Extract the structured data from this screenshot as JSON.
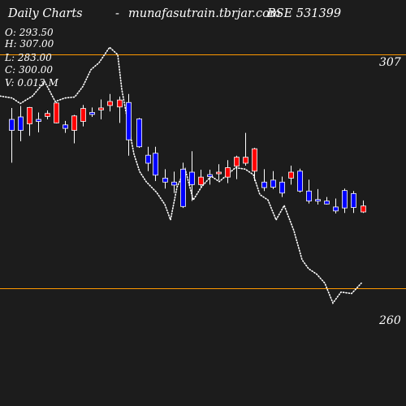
{
  "header": {
    "title": "Daily Charts",
    "dash": "-",
    "source": "munafasutrain.tbrjar.com",
    "symbol": "BSE 531399"
  },
  "ohlcv": {
    "open": "O: 293.50",
    "high": "H: 307.00",
    "low": "L: 283.00",
    "close": "C: 300.00",
    "volume": "V: 0.013 M"
  },
  "colors": {
    "background": "#1c1c1c",
    "up_candle": "#ff0000",
    "down_candle": "#0000ff",
    "level_line": "#ff9900",
    "text": "#ffffff",
    "dotted_line": "#ffffff"
  },
  "chart_data": {
    "type": "candlestick",
    "levels": [
      {
        "value": 307,
        "label": "307"
      },
      {
        "value": 260,
        "label": "260"
      }
    ],
    "candles": [
      {
        "x": 14,
        "open": 294.0,
        "high": 296.3,
        "low": 285.3,
        "close": 291.8
      },
      {
        "x": 25,
        "open": 294.5,
        "high": 296.7,
        "low": 289.6,
        "close": 291.8
      },
      {
        "x": 36,
        "open": 293.1,
        "high": 296.5,
        "low": 290.7,
        "close": 296.4
      },
      {
        "x": 47,
        "open": 294.0,
        "high": 295.4,
        "low": 291.4,
        "close": 293.6
      },
      {
        "x": 58,
        "open": 294.6,
        "high": 295.8,
        "low": 294.0,
        "close": 295.2
      },
      {
        "x": 69,
        "open": 293.3,
        "high": 297.5,
        "low": 293.2,
        "close": 297.3
      },
      {
        "x": 80,
        "open": 292.9,
        "high": 293.7,
        "low": 291.3,
        "close": 292.2
      },
      {
        "x": 91,
        "open": 291.8,
        "high": 294.9,
        "low": 289.2,
        "close": 294.7
      },
      {
        "x": 102,
        "open": 293.6,
        "high": 296.9,
        "low": 292.6,
        "close": 296.2
      },
      {
        "x": 113,
        "open": 295.4,
        "high": 296.4,
        "low": 294.5,
        "close": 295.0
      },
      {
        "x": 124,
        "open": 295.9,
        "high": 298.0,
        "low": 294.0,
        "close": 296.3
      },
      {
        "x": 135,
        "open": 296.8,
        "high": 299.1,
        "low": 295.6,
        "close": 297.6
      },
      {
        "x": 147,
        "open": 296.5,
        "high": 298.6,
        "low": 293.3,
        "close": 297.9
      },
      {
        "x": 158,
        "open": 297.4,
        "high": 299.1,
        "low": 286.7,
        "close": 289.9
      },
      {
        "x": 171,
        "open": 294.1,
        "high": 294.3,
        "low": 288.3,
        "close": 288.5
      },
      {
        "x": 182,
        "open": 286.8,
        "high": 288.5,
        "low": 283.6,
        "close": 285.2
      },
      {
        "x": 191,
        "open": 287.2,
        "high": 288.5,
        "low": 281.6,
        "close": 282.8
      },
      {
        "x": 203,
        "open": 282.2,
        "high": 284.0,
        "low": 280.1,
        "close": 281.4
      },
      {
        "x": 214,
        "open": 281.4,
        "high": 283.5,
        "low": 279.2,
        "close": 280.8
      },
      {
        "x": 225,
        "open": 284.0,
        "high": 285.3,
        "low": 276.2,
        "close": 276.5
      },
      {
        "x": 236,
        "open": 283.4,
        "high": 287.6,
        "low": 277.6,
        "close": 280.9
      },
      {
        "x": 247,
        "open": 280.9,
        "high": 283.9,
        "low": 280.3,
        "close": 282.4
      },
      {
        "x": 258,
        "open": 282.9,
        "high": 283.9,
        "low": 280.9,
        "close": 282.5
      },
      {
        "x": 269,
        "open": 283.1,
        "high": 285.0,
        "low": 281.8,
        "close": 283.4
      },
      {
        "x": 280,
        "open": 282.4,
        "high": 285.8,
        "low": 281.2,
        "close": 284.3
      },
      {
        "x": 291,
        "open": 284.6,
        "high": 286.7,
        "low": 282.0,
        "close": 286.4
      },
      {
        "x": 302,
        "open": 285.2,
        "high": 291.3,
        "low": 284.7,
        "close": 286.4
      },
      {
        "x": 313,
        "open": 283.6,
        "high": 288.3,
        "low": 281.6,
        "close": 288.1
      },
      {
        "x": 325,
        "open": 281.4,
        "high": 284.0,
        "low": 279.6,
        "close": 280.3
      },
      {
        "x": 336,
        "open": 281.8,
        "high": 283.6,
        "low": 280.0,
        "close": 280.4
      },
      {
        "x": 347,
        "open": 281.4,
        "high": 282.5,
        "low": 278.4,
        "close": 279.2
      },
      {
        "x": 358,
        "open": 282.2,
        "high": 284.7,
        "low": 280.9,
        "close": 283.4
      },
      {
        "x": 369,
        "open": 283.6,
        "high": 284.1,
        "low": 279.3,
        "close": 279.6
      },
      {
        "x": 380,
        "open": 279.6,
        "high": 281.9,
        "low": 277.1,
        "close": 277.6
      },
      {
        "x": 391,
        "open": 277.9,
        "high": 280.0,
        "low": 276.9,
        "close": 277.7
      },
      {
        "x": 402,
        "open": 277.6,
        "high": 278.4,
        "low": 276.9,
        "close": 277.0
      },
      {
        "x": 413,
        "open": 276.4,
        "high": 278.1,
        "low": 275.1,
        "close": 275.6
      },
      {
        "x": 424,
        "open": 279.7,
        "high": 280.1,
        "low": 275.2,
        "close": 276.2
      },
      {
        "x": 435,
        "open": 279.1,
        "high": 279.6,
        "low": 275.2,
        "close": 276.3
      },
      {
        "x": 447,
        "open": 275.4,
        "high": 277.7,
        "low": 275.2,
        "close": 276.6
      }
    ],
    "dotted_line": [
      {
        "x": 0,
        "y": 298.7
      },
      {
        "x": 15,
        "y": 298.3
      },
      {
        "x": 25,
        "y": 297.2
      },
      {
        "x": 40,
        "y": 298.7
      },
      {
        "x": 55,
        "y": 301.6
      },
      {
        "x": 68,
        "y": 297.6
      },
      {
        "x": 80,
        "y": 298.3
      },
      {
        "x": 92,
        "y": 298.5
      },
      {
        "x": 102,
        "y": 300.6
      },
      {
        "x": 112,
        "y": 304.0
      },
      {
        "x": 122,
        "y": 305.4
      },
      {
        "x": 135,
        "y": 308.5
      },
      {
        "x": 145,
        "y": 307.0
      },
      {
        "x": 150,
        "y": 300.0
      },
      {
        "x": 158,
        "y": 293.0
      },
      {
        "x": 165,
        "y": 287.0
      },
      {
        "x": 172,
        "y": 283.5
      },
      {
        "x": 180,
        "y": 281.5
      },
      {
        "x": 193,
        "y": 279.3
      },
      {
        "x": 203,
        "y": 276.9
      },
      {
        "x": 210,
        "y": 273.8
      },
      {
        "x": 218,
        "y": 280.4
      },
      {
        "x": 228,
        "y": 284.0
      },
      {
        "x": 238,
        "y": 277.8
      },
      {
        "x": 248,
        "y": 280.4
      },
      {
        "x": 260,
        "y": 282.6
      },
      {
        "x": 270,
        "y": 281.5
      },
      {
        "x": 280,
        "y": 282.9
      },
      {
        "x": 290,
        "y": 284.3
      },
      {
        "x": 302,
        "y": 284.0
      },
      {
        "x": 312,
        "y": 282.9
      },
      {
        "x": 320,
        "y": 278.9
      },
      {
        "x": 330,
        "y": 277.8
      },
      {
        "x": 340,
        "y": 273.8
      },
      {
        "x": 350,
        "y": 276.7
      },
      {
        "x": 362,
        "y": 271.6
      },
      {
        "x": 372,
        "y": 265.8
      },
      {
        "x": 380,
        "y": 264.0
      },
      {
        "x": 390,
        "y": 262.9
      },
      {
        "x": 400,
        "y": 261.1
      },
      {
        "x": 410,
        "y": 257.1
      },
      {
        "x": 420,
        "y": 259.3
      },
      {
        "x": 433,
        "y": 259.0
      },
      {
        "x": 445,
        "y": 261.1
      }
    ],
    "ylim": [
      236.4,
      318.0
    ]
  }
}
